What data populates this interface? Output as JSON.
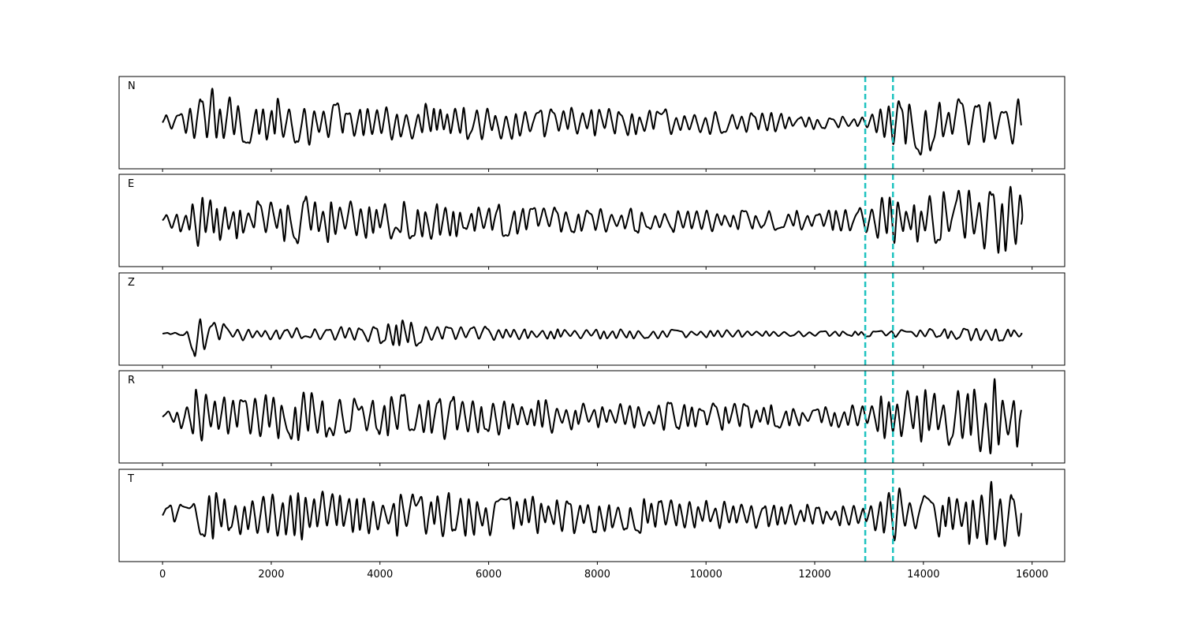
{
  "chart_data": {
    "type": "line",
    "xlim": [
      -800,
      16600
    ],
    "x_ticks": [
      0,
      2000,
      4000,
      6000,
      8000,
      10000,
      12000,
      14000,
      16000
    ],
    "x_tick_labels": [
      "0",
      "2000",
      "4000",
      "6000",
      "8000",
      "10000",
      "12000",
      "14000",
      "16000"
    ],
    "x_start": 0,
    "x_end": 15800,
    "series_color": "#000000",
    "marker_color": "#1fc3c0",
    "vertical_markers": [
      12930,
      13440
    ],
    "panels": [
      {
        "label": "N",
        "seed": 11,
        "envelope": [
          [
            0,
            0.35
          ],
          [
            500,
            0.45
          ],
          [
            700,
            0.9
          ],
          [
            900,
            0.95
          ],
          [
            1300,
            0.55
          ],
          [
            1800,
            0.6
          ],
          [
            2500,
            0.55
          ],
          [
            3500,
            0.5
          ],
          [
            5000,
            0.45
          ],
          [
            6500,
            0.4
          ],
          [
            8000,
            0.35
          ],
          [
            9500,
            0.3
          ],
          [
            11000,
            0.25
          ],
          [
            12000,
            0.2
          ],
          [
            12800,
            0.15
          ],
          [
            13000,
            0.25
          ],
          [
            13300,
            0.55
          ],
          [
            13700,
            0.8
          ],
          [
            14500,
            0.55
          ],
          [
            15200,
            0.6
          ],
          [
            15800,
            0.55
          ]
        ],
        "ylim": [
          -1.1,
          1.1
        ]
      },
      {
        "label": "E",
        "seed": 23,
        "envelope": [
          [
            0,
            0.25
          ],
          [
            400,
            0.3
          ],
          [
            540,
            0.95
          ],
          [
            700,
            0.55
          ],
          [
            1200,
            0.45
          ],
          [
            2000,
            0.45
          ],
          [
            2600,
            0.6
          ],
          [
            3500,
            0.45
          ],
          [
            5000,
            0.45
          ],
          [
            6500,
            0.35
          ],
          [
            8000,
            0.3
          ],
          [
            10000,
            0.3
          ],
          [
            12000,
            0.25
          ],
          [
            12900,
            0.3
          ],
          [
            13200,
            0.75
          ],
          [
            13500,
            0.5
          ],
          [
            14200,
            0.65
          ],
          [
            15000,
            0.85
          ],
          [
            15500,
            0.9
          ],
          [
            15800,
            0.5
          ]
        ],
        "ylim": [
          -1.1,
          1.1
        ]
      },
      {
        "label": "Z",
        "seed": 37,
        "envelope": [
          [
            0,
            0.03
          ],
          [
            420,
            0.04
          ],
          [
            500,
            1.0
          ],
          [
            560,
            0.6
          ],
          [
            700,
            0.3
          ],
          [
            1200,
            0.15
          ],
          [
            2000,
            0.12
          ],
          [
            3500,
            0.15
          ],
          [
            4000,
            0.25
          ],
          [
            4800,
            0.3
          ],
          [
            5500,
            0.15
          ],
          [
            7000,
            0.12
          ],
          [
            9000,
            0.1
          ],
          [
            11000,
            0.07
          ],
          [
            12500,
            0.05
          ],
          [
            13500,
            0.08
          ],
          [
            14500,
            0.12
          ],
          [
            15300,
            0.18
          ],
          [
            15800,
            0.12
          ]
        ],
        "ylim": [
          -0.65,
          1.25
        ]
      },
      {
        "label": "R",
        "seed": 41,
        "envelope": [
          [
            0,
            0.25
          ],
          [
            400,
            0.3
          ],
          [
            540,
            0.9
          ],
          [
            700,
            0.6
          ],
          [
            1200,
            0.55
          ],
          [
            2000,
            0.6
          ],
          [
            2600,
            0.65
          ],
          [
            3500,
            0.45
          ],
          [
            5000,
            0.55
          ],
          [
            6500,
            0.45
          ],
          [
            8000,
            0.3
          ],
          [
            10000,
            0.35
          ],
          [
            12000,
            0.25
          ],
          [
            12900,
            0.3
          ],
          [
            13200,
            0.8
          ],
          [
            13500,
            0.6
          ],
          [
            14200,
            0.75
          ],
          [
            15000,
            0.85
          ],
          [
            15500,
            1.0
          ],
          [
            15800,
            0.6
          ]
        ],
        "ylim": [
          -1.1,
          1.1
        ]
      },
      {
        "label": "T",
        "seed": 53,
        "envelope": [
          [
            0,
            0.3
          ],
          [
            400,
            0.35
          ],
          [
            600,
            0.75
          ],
          [
            700,
            0.95
          ],
          [
            900,
            0.8
          ],
          [
            1300,
            0.55
          ],
          [
            2000,
            0.5
          ],
          [
            2600,
            0.7
          ],
          [
            3500,
            0.45
          ],
          [
            5000,
            0.55
          ],
          [
            6500,
            0.45
          ],
          [
            8000,
            0.45
          ],
          [
            10000,
            0.35
          ],
          [
            12000,
            0.25
          ],
          [
            12900,
            0.3
          ],
          [
            13250,
            0.95
          ],
          [
            13600,
            0.5
          ],
          [
            14500,
            0.65
          ],
          [
            15000,
            0.85
          ],
          [
            15500,
            0.75
          ],
          [
            15800,
            0.35
          ]
        ],
        "ylim": [
          -1.1,
          1.1
        ]
      }
    ]
  }
}
